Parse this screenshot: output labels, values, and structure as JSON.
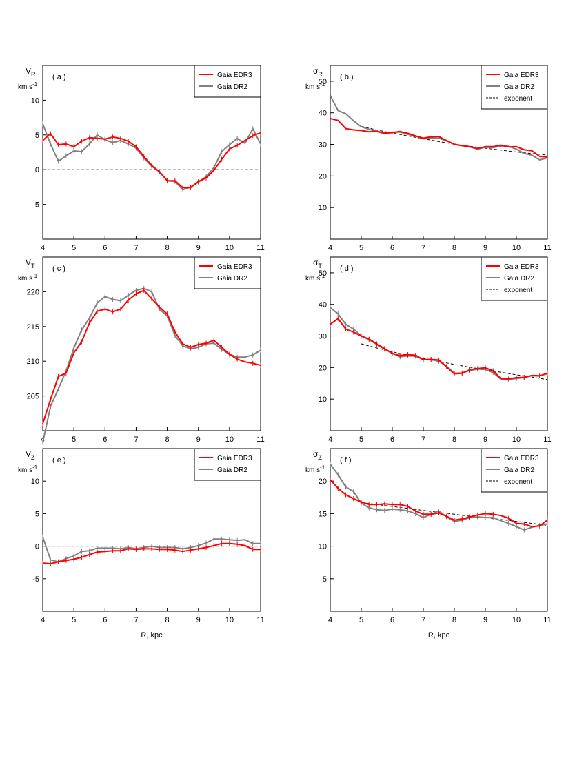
{
  "chart_data": [
    {
      "type": "line",
      "panel": "( a )",
      "ylabel": "V",
      "ylabel_sub": "R",
      "yunit": "km s",
      "yunit_sup": "-1",
      "xlabel": "",
      "xlim": [
        4,
        11
      ],
      "ylim": [
        -10,
        15
      ],
      "xticks": [
        "4",
        "5",
        "6",
        "7",
        "8",
        "9",
        "10",
        "11"
      ],
      "yticks": [
        [
          "10",
          10
        ],
        [
          "5",
          5
        ],
        [
          "0",
          0
        ],
        [
          "-5",
          -5
        ]
      ],
      "zero_line": true,
      "legend": "top-right",
      "x": [
        4.0,
        4.25,
        4.5,
        4.75,
        5.0,
        5.25,
        5.5,
        5.75,
        6.0,
        6.25,
        6.5,
        6.75,
        7.0,
        7.25,
        7.5,
        7.75,
        8.0,
        8.25,
        8.5,
        8.75,
        9.0,
        9.25,
        9.5,
        9.75,
        10.0,
        10.25,
        10.5,
        10.75,
        11.0
      ],
      "series": [
        {
          "name": "Gaia EDR3",
          "color": "#ff0000",
          "width": 2,
          "errorbars": true,
          "values": [
            4.2,
            5.2,
            3.6,
            3.7,
            3.3,
            4.1,
            4.6,
            4.5,
            4.4,
            4.7,
            4.5,
            4.1,
            3.3,
            1.9,
            0.6,
            -0.3,
            -1.6,
            -1.6,
            -2.6,
            -2.6,
            -1.7,
            -1.2,
            -0.1,
            1.5,
            3.0,
            3.5,
            4.2,
            4.9,
            5.3
          ]
        },
        {
          "name": "Gaia DR2",
          "color": "#808080",
          "width": 2,
          "errorbars": true,
          "values": [
            6.6,
            3.7,
            1.2,
            2.0,
            2.7,
            2.6,
            3.7,
            5.0,
            4.3,
            3.9,
            4.2,
            3.7,
            3.1,
            1.7,
            0.5,
            -0.3,
            -1.6,
            -1.7,
            -2.9,
            -2.5,
            -1.8,
            -1.0,
            0.3,
            2.6,
            3.6,
            4.5,
            3.8,
            5.9,
            3.7
          ]
        }
      ]
    },
    {
      "type": "line",
      "panel": "( b )",
      "ylabel": "σ",
      "ylabel_sub": "R",
      "yunit": "km s",
      "yunit_sup": "-1",
      "xlabel": "",
      "xlim": [
        4,
        11
      ],
      "ylim": [
        0,
        55
      ],
      "xticks": [
        "4",
        "5",
        "6",
        "7",
        "8",
        "9",
        "10",
        "11"
      ],
      "yticks": [
        [
          "50",
          50
        ],
        [
          "40",
          40
        ],
        [
          "30",
          30
        ],
        [
          "20",
          20
        ],
        [
          "10",
          10
        ]
      ],
      "zero_line": false,
      "legend": "top-right",
      "x": [
        4.0,
        4.25,
        4.5,
        4.75,
        5.0,
        5.25,
        5.5,
        5.75,
        6.0,
        6.25,
        6.5,
        6.75,
        7.0,
        7.25,
        7.5,
        7.75,
        8.0,
        8.25,
        8.5,
        8.75,
        9.0,
        9.25,
        9.5,
        9.75,
        10.0,
        10.25,
        10.5,
        10.75,
        11.0
      ],
      "series": [
        {
          "name": "Gaia EDR3",
          "color": "#ff0000",
          "width": 2,
          "errorbars": false,
          "values": [
            38.2,
            37.6,
            35.0,
            34.6,
            34.4,
            34.0,
            34.2,
            33.6,
            33.7,
            34.1,
            33.5,
            32.7,
            32.0,
            32.4,
            32.5,
            31.2,
            30.0,
            29.6,
            29.3,
            28.7,
            29.3,
            29.3,
            29.8,
            29.2,
            29.3,
            28.3,
            28.0,
            26.2,
            26.0
          ]
        },
        {
          "name": "Gaia DR2",
          "color": "#808080",
          "width": 2,
          "errorbars": false,
          "values": [
            45.5,
            40.7,
            39.7,
            37.5,
            35.6,
            34.8,
            34.1,
            33.4,
            33.9,
            33.9,
            33.2,
            32.6,
            31.8,
            32.1,
            32.0,
            31.1,
            30.1,
            29.6,
            29.2,
            28.5,
            29.1,
            29.0,
            29.5,
            29.4,
            28.5,
            27.1,
            26.6,
            25.1,
            25.7
          ]
        },
        {
          "name": "exponent",
          "color": "#000000",
          "width": 1,
          "dashed": true,
          "errorbars": false,
          "x": [
            5.0,
            5.5,
            6.0,
            6.5,
            7.0,
            7.5,
            8.0,
            8.5,
            9.0,
            9.5,
            10.0,
            10.5,
            11.0
          ],
          "values": [
            35.7,
            34.6,
            33.6,
            32.7,
            31.8,
            30.9,
            30.1,
            29.4,
            28.8,
            28.2,
            27.6,
            27.1,
            26.6
          ]
        }
      ]
    },
    {
      "type": "line",
      "panel": "( c )",
      "ylabel": "V",
      "ylabel_sub": "T",
      "yunit": "km s",
      "yunit_sup": "-1",
      "xlabel": "",
      "xlim": [
        4,
        11
      ],
      "ylim": [
        200,
        225
      ],
      "xticks": [
        "4",
        "5",
        "6",
        "7",
        "8",
        "9",
        "10",
        "11"
      ],
      "yticks": [
        [
          "220",
          220
        ],
        [
          "215",
          215
        ],
        [
          "210",
          210
        ],
        [
          "205",
          205
        ]
      ],
      "zero_line": false,
      "legend": "top-right",
      "x": [
        4.0,
        4.25,
        4.5,
        4.75,
        5.0,
        5.25,
        5.5,
        5.75,
        6.0,
        6.25,
        6.5,
        6.75,
        7.0,
        7.25,
        7.5,
        7.75,
        8.0,
        8.25,
        8.5,
        8.75,
        9.0,
        9.25,
        9.5,
        9.75,
        10.0,
        10.25,
        10.5,
        10.75,
        11.0
      ],
      "series": [
        {
          "name": "Gaia EDR3",
          "color": "#ff0000",
          "width": 2,
          "errorbars": true,
          "values": [
            201.0,
            204.5,
            207.8,
            208.3,
            211.2,
            212.8,
            215.5,
            217.2,
            217.5,
            217.1,
            217.5,
            218.8,
            219.7,
            220.2,
            219.0,
            217.8,
            216.8,
            214.2,
            212.5,
            212.0,
            212.4,
            212.6,
            213.0,
            212.0,
            211.0,
            210.3,
            209.9,
            209.7,
            209.4
          ]
        },
        {
          "name": "Gaia DR2",
          "color": "#808080",
          "width": 2,
          "errorbars": true,
          "values": [
            198.3,
            203.5,
            206.0,
            208.6,
            211.9,
            214.5,
            216.2,
            218.4,
            219.3,
            218.9,
            218.7,
            219.5,
            220.2,
            220.5,
            220.0,
            217.5,
            216.5,
            213.7,
            212.2,
            211.8,
            212.0,
            212.5,
            212.6,
            211.7,
            211.0,
            210.6,
            210.6,
            210.9,
            211.6
          ]
        }
      ]
    },
    {
      "type": "line",
      "panel": "( d )",
      "ylabel": "σ",
      "ylabel_sub": "T",
      "yunit": "km s",
      "yunit_sup": "-1",
      "xlabel": "",
      "xlim": [
        4,
        11
      ],
      "ylim": [
        0,
        55
      ],
      "xticks": [
        "4",
        "5",
        "6",
        "7",
        "8",
        "9",
        "10",
        "11"
      ],
      "yticks": [
        [
          "50",
          50
        ],
        [
          "40",
          40
        ],
        [
          "30",
          30
        ],
        [
          "20",
          20
        ],
        [
          "10",
          10
        ]
      ],
      "zero_line": false,
      "legend": "top-right",
      "x": [
        4.0,
        4.25,
        4.5,
        4.75,
        5.0,
        5.25,
        5.5,
        5.75,
        6.0,
        6.25,
        6.5,
        6.75,
        7.0,
        7.25,
        7.5,
        7.75,
        8.0,
        8.25,
        8.5,
        8.75,
        9.0,
        9.25,
        9.5,
        9.75,
        10.0,
        10.25,
        10.5,
        10.75,
        11.0
      ],
      "series": [
        {
          "name": "Gaia EDR3",
          "color": "#ff0000",
          "width": 2,
          "errorbars": true,
          "values": [
            33.7,
            35.5,
            32.2,
            31.2,
            30.0,
            29.0,
            27.5,
            26.0,
            24.5,
            23.8,
            24.1,
            23.9,
            22.5,
            22.6,
            22.4,
            20.2,
            18.0,
            18.2,
            19.3,
            19.7,
            19.9,
            19.0,
            16.5,
            16.4,
            16.8,
            16.9,
            17.5,
            17.4,
            18.1
          ]
        },
        {
          "name": "Gaia DR2",
          "color": "#808080",
          "width": 2,
          "errorbars": true,
          "values": [
            39.0,
            37.0,
            33.7,
            32.2,
            30.0,
            28.8,
            27.3,
            25.8,
            24.5,
            23.4,
            23.7,
            23.6,
            22.5,
            22.5,
            22.0,
            20.4,
            18.2,
            18.3,
            19.1,
            19.5,
            19.4,
            18.4,
            16.3,
            16.3,
            16.5,
            16.9,
            17.4,
            17.3,
            18.3
          ]
        },
        {
          "name": "exponent",
          "color": "#000000",
          "width": 1,
          "dashed": true,
          "errorbars": false,
          "x": [
            5.0,
            5.5,
            6.0,
            6.5,
            7.0,
            7.5,
            8.0,
            8.5,
            9.0,
            9.5,
            10.0,
            10.5,
            11.0
          ],
          "values": [
            27.5,
            26.2,
            25.0,
            23.9,
            22.9,
            21.9,
            21.0,
            20.1,
            19.3,
            18.5,
            17.7,
            17.0,
            16.2
          ]
        }
      ]
    },
    {
      "type": "line",
      "panel": "( e )",
      "ylabel": "V",
      "ylabel_sub": "Z",
      "yunit": "km s",
      "yunit_sup": "-1",
      "xlabel": "R, kpc",
      "xlim": [
        4,
        11
      ],
      "ylim": [
        -10,
        15
      ],
      "xticks": [
        "4",
        "5",
        "6",
        "7",
        "8",
        "9",
        "10",
        "11"
      ],
      "yticks": [
        [
          "10",
          10
        ],
        [
          "5",
          5
        ],
        [
          "0",
          0
        ],
        [
          "-5",
          -5
        ]
      ],
      "zero_line": true,
      "legend": "top-right",
      "x": [
        4.0,
        4.25,
        4.5,
        4.75,
        5.0,
        5.25,
        5.5,
        5.75,
        6.0,
        6.25,
        6.5,
        6.75,
        7.0,
        7.25,
        7.5,
        7.75,
        8.0,
        8.25,
        8.5,
        8.75,
        9.0,
        9.25,
        9.5,
        9.75,
        10.0,
        10.25,
        10.5,
        10.75,
        11.0
      ],
      "series": [
        {
          "name": "Gaia EDR3",
          "color": "#ff0000",
          "width": 2,
          "errorbars": true,
          "values": [
            -2.6,
            -2.7,
            -2.4,
            -2.2,
            -2.0,
            -1.7,
            -1.3,
            -0.9,
            -0.8,
            -0.7,
            -0.7,
            -0.4,
            -0.5,
            -0.4,
            -0.4,
            -0.5,
            -0.5,
            -0.6,
            -0.8,
            -0.6,
            -0.4,
            -0.2,
            0.1,
            0.4,
            0.4,
            0.3,
            0.1,
            -0.5,
            -0.5
          ]
        },
        {
          "name": "Gaia DR2",
          "color": "#808080",
          "width": 2,
          "errorbars": true,
          "values": [
            1.4,
            -2.1,
            -2.4,
            -1.9,
            -1.5,
            -0.8,
            -0.7,
            -0.3,
            -0.3,
            -0.3,
            -0.4,
            -0.2,
            -0.4,
            -0.2,
            0.0,
            -0.2,
            -0.2,
            -0.2,
            -0.4,
            -0.2,
            0.1,
            0.5,
            1.1,
            1.1,
            1.0,
            0.9,
            1.0,
            0.4,
            0.4
          ]
        }
      ]
    },
    {
      "type": "line",
      "panel": "( f )",
      "ylabel": "σ",
      "ylabel_sub": "Z",
      "yunit": "km s",
      "yunit_sup": "-1",
      "xlabel": "R, kpc",
      "xlim": [
        4,
        11
      ],
      "ylim": [
        0,
        25
      ],
      "xticks": [
        "4",
        "5",
        "6",
        "7",
        "8",
        "9",
        "10",
        "11"
      ],
      "yticks": [
        [
          "20",
          20
        ],
        [
          "15",
          15
        ],
        [
          "10",
          10
        ],
        [
          "5",
          5
        ]
      ],
      "zero_line": false,
      "legend": "top-right",
      "x": [
        4.0,
        4.25,
        4.5,
        4.75,
        5.0,
        5.25,
        5.5,
        5.75,
        6.0,
        6.25,
        6.5,
        6.75,
        7.0,
        7.25,
        7.5,
        7.75,
        8.0,
        8.25,
        8.5,
        8.75,
        9.0,
        9.25,
        9.5,
        9.75,
        10.0,
        10.25,
        10.5,
        10.75,
        11.0
      ],
      "series": [
        {
          "name": "Gaia EDR3",
          "color": "#ff0000",
          "width": 2,
          "errorbars": true,
          "values": [
            20.2,
            18.9,
            17.9,
            17.3,
            16.8,
            16.4,
            16.4,
            16.5,
            16.4,
            16.4,
            16.1,
            15.4,
            14.9,
            14.9,
            15.1,
            14.6,
            14.0,
            14.2,
            14.5,
            14.8,
            15.0,
            14.9,
            14.7,
            14.3,
            13.5,
            13.4,
            13.0,
            13.1,
            14.0
          ]
        },
        {
          "name": "Gaia DR2",
          "color": "#808080",
          "width": 2,
          "errorbars": true,
          "values": [
            22.6,
            21.0,
            19.1,
            18.4,
            16.6,
            15.9,
            15.6,
            15.5,
            15.7,
            15.6,
            15.4,
            15.0,
            14.4,
            14.9,
            15.4,
            14.5,
            13.8,
            14.0,
            14.4,
            14.5,
            14.4,
            14.4,
            13.9,
            13.5,
            13.0,
            12.5,
            12.9,
            13.2,
            13.4
          ]
        },
        {
          "name": "exponent",
          "color": "#000000",
          "width": 1,
          "dashed": true,
          "errorbars": false,
          "x": [
            5.0,
            5.5,
            6.0,
            6.5,
            7.0,
            7.5,
            8.0,
            8.5,
            9.0,
            9.5,
            10.0,
            10.5,
            11.0
          ],
          "values": [
            16.7,
            16.4,
            16.1,
            15.8,
            15.5,
            15.2,
            14.9,
            14.6,
            14.4,
            14.1,
            13.8,
            13.5,
            13.2
          ]
        }
      ]
    }
  ]
}
